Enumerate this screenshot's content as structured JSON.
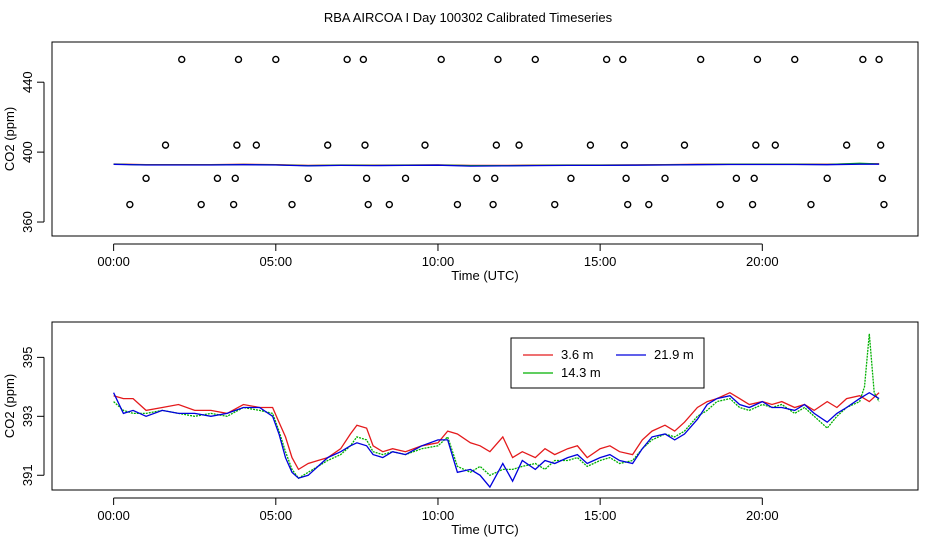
{
  "title": "RBA AIRCOA I  Day 100302  Calibrated Timeseries",
  "chart_data": [
    {
      "type": "scatter",
      "xlabel": "Time (UTC)",
      "ylabel": "CO2 (ppm)",
      "xlim": [
        -1.9,
        24.8
      ],
      "ylim": [
        352,
        463
      ],
      "xticks": [
        {
          "v": 0,
          "label": "00:00"
        },
        {
          "v": 5,
          "label": "05:00"
        },
        {
          "v": 10,
          "label": "10:00"
        },
        {
          "v": 15,
          "label": "15:00"
        },
        {
          "v": 20,
          "label": "20:00"
        }
      ],
      "yticks": [
        {
          "v": 360,
          "label": "360"
        },
        {
          "v": 400,
          "label": "400"
        },
        {
          "v": 440,
          "label": "440"
        }
      ],
      "marker_points": [
        [
          0.5,
          370
        ],
        [
          1.0,
          385
        ],
        [
          1.6,
          404
        ],
        [
          2.1,
          453
        ],
        [
          2.7,
          370
        ],
        [
          3.2,
          385
        ],
        [
          3.7,
          370
        ],
        [
          3.75,
          385
        ],
        [
          3.8,
          404
        ],
        [
          3.85,
          453
        ],
        [
          4.4,
          404
        ],
        [
          5.0,
          453
        ],
        [
          5.5,
          370
        ],
        [
          6.0,
          385
        ],
        [
          6.6,
          404
        ],
        [
          7.2,
          453
        ],
        [
          7.7,
          453
        ],
        [
          7.75,
          404
        ],
        [
          7.8,
          385
        ],
        [
          7.85,
          370
        ],
        [
          8.5,
          370
        ],
        [
          9.0,
          385
        ],
        [
          9.6,
          404
        ],
        [
          10.1,
          453
        ],
        [
          10.6,
          370
        ],
        [
          11.2,
          385
        ],
        [
          11.7,
          370
        ],
        [
          11.75,
          385
        ],
        [
          11.8,
          404
        ],
        [
          11.85,
          453
        ],
        [
          12.5,
          404
        ],
        [
          13.0,
          453
        ],
        [
          13.6,
          370
        ],
        [
          14.1,
          385
        ],
        [
          14.7,
          404
        ],
        [
          15.2,
          453
        ],
        [
          15.7,
          453
        ],
        [
          15.75,
          404
        ],
        [
          15.8,
          385
        ],
        [
          15.85,
          370
        ],
        [
          16.5,
          370
        ],
        [
          17.0,
          385
        ],
        [
          17.6,
          404
        ],
        [
          18.1,
          453
        ],
        [
          18.7,
          370
        ],
        [
          19.2,
          385
        ],
        [
          19.7,
          370
        ],
        [
          19.75,
          385
        ],
        [
          19.8,
          404
        ],
        [
          19.85,
          453
        ],
        [
          20.4,
          404
        ],
        [
          21.0,
          453
        ],
        [
          21.5,
          370
        ],
        [
          22.0,
          385
        ],
        [
          22.6,
          404
        ],
        [
          23.1,
          453
        ],
        [
          23.6,
          453
        ],
        [
          23.65,
          404
        ],
        [
          23.7,
          385
        ],
        [
          23.75,
          370
        ]
      ],
      "series": [
        {
          "name": "3.6 m",
          "color": "#e41a1c",
          "x": [
            0,
            1,
            2,
            3,
            4,
            5,
            6,
            7,
            8,
            9,
            10,
            11,
            12,
            13,
            14,
            15,
            16,
            17,
            18,
            19,
            20,
            21,
            22,
            23,
            23.6
          ],
          "y": [
            393.2,
            392.8,
            392.8,
            392.8,
            393.0,
            392.8,
            392.4,
            392.6,
            392.5,
            392.6,
            392.7,
            392.4,
            392.4,
            392.5,
            392.6,
            392.6,
            392.7,
            392.8,
            393.0,
            393.1,
            393.1,
            393.1,
            393.0,
            393.3,
            393.3
          ]
        },
        {
          "name": "14.3 m",
          "color": "#00b000",
          "x": [
            0,
            1,
            2,
            3,
            4,
            5,
            6,
            7,
            8,
            9,
            10,
            11,
            12,
            13,
            14,
            15,
            16,
            17,
            18,
            19,
            20,
            21,
            22,
            23,
            23.6
          ],
          "y": [
            393.1,
            392.7,
            392.7,
            392.7,
            392.9,
            392.7,
            392.3,
            392.5,
            392.4,
            392.5,
            392.6,
            392.2,
            392.2,
            392.4,
            392.5,
            392.5,
            392.6,
            392.7,
            392.9,
            393.0,
            393.0,
            393.0,
            392.9,
            393.6,
            393.2
          ]
        },
        {
          "name": "21.9 m",
          "color": "#0000dd",
          "x": [
            0,
            1,
            2,
            3,
            4,
            5,
            6,
            7,
            8,
            9,
            10,
            11,
            12,
            13,
            14,
            15,
            16,
            17,
            18,
            19,
            20,
            21,
            22,
            23,
            23.6
          ],
          "y": [
            393.0,
            392.6,
            392.6,
            392.6,
            392.8,
            392.6,
            392.1,
            392.4,
            392.3,
            392.4,
            392.5,
            392.0,
            392.1,
            392.3,
            392.4,
            392.4,
            392.5,
            392.6,
            392.8,
            392.9,
            392.9,
            392.9,
            392.8,
            393.1,
            393.1
          ]
        }
      ]
    },
    {
      "type": "line",
      "xlabel": "Time (UTC)",
      "ylabel": "CO2 (ppm)",
      "xlim": [
        -1.9,
        24.8
      ],
      "ylim": [
        390.5,
        396.2
      ],
      "xticks": [
        {
          "v": 0,
          "label": "00:00"
        },
        {
          "v": 5,
          "label": "05:00"
        },
        {
          "v": 10,
          "label": "10:00"
        },
        {
          "v": 15,
          "label": "15:00"
        },
        {
          "v": 20,
          "label": "20:00"
        }
      ],
      "yticks": [
        {
          "v": 391,
          "label": "391"
        },
        {
          "v": 393,
          "label": "393"
        },
        {
          "v": 395,
          "label": "395"
        }
      ],
      "legend": {
        "position": "top-center"
      },
      "series": [
        {
          "name": "3.6 m",
          "color": "#e41a1c",
          "x": [
            0,
            0.3,
            0.6,
            1.0,
            1.5,
            2.0,
            2.5,
            3.0,
            3.5,
            4.0,
            4.5,
            4.9,
            5.1,
            5.3,
            5.5,
            5.7,
            6.0,
            6.3,
            6.6,
            7.0,
            7.3,
            7.5,
            7.8,
            8.0,
            8.3,
            8.6,
            9.0,
            9.5,
            10.0,
            10.3,
            10.6,
            11.0,
            11.3,
            11.6,
            12.0,
            12.3,
            12.6,
            13.0,
            13.3,
            13.6,
            14.0,
            14.3,
            14.6,
            15.0,
            15.3,
            15.6,
            16.0,
            16.3,
            16.6,
            17.0,
            17.3,
            17.6,
            18.0,
            18.3,
            18.6,
            19.0,
            19.3,
            19.6,
            20.0,
            20.3,
            20.6,
            21.0,
            21.3,
            21.6,
            22.0,
            22.3,
            22.6,
            23.0,
            23.3,
            23.6
          ],
          "y": [
            393.7,
            393.6,
            393.6,
            393.2,
            393.3,
            393.4,
            393.2,
            393.2,
            393.1,
            393.4,
            393.3,
            393.3,
            392.8,
            392.3,
            391.6,
            391.2,
            391.4,
            391.5,
            391.6,
            391.9,
            392.4,
            392.7,
            392.6,
            392.0,
            391.8,
            391.9,
            391.8,
            392.0,
            392.1,
            392.5,
            392.4,
            392.1,
            392.0,
            391.8,
            392.3,
            391.6,
            391.8,
            391.6,
            391.9,
            391.7,
            391.9,
            392.0,
            391.6,
            391.9,
            392.0,
            391.8,
            391.7,
            392.2,
            392.5,
            392.7,
            392.5,
            392.8,
            393.3,
            393.5,
            393.6,
            393.8,
            393.6,
            393.4,
            393.5,
            393.4,
            393.5,
            393.3,
            393.4,
            393.2,
            393.5,
            393.3,
            393.6,
            393.7,
            393.5,
            393.8
          ]
        },
        {
          "name": "14.3 m",
          "color": "#00b000",
          "x": [
            0,
            0.3,
            0.6,
            1.0,
            1.5,
            2.0,
            2.5,
            3.0,
            3.5,
            4.0,
            4.5,
            4.9,
            5.1,
            5.3,
            5.5,
            5.7,
            6.0,
            6.3,
            6.6,
            7.0,
            7.3,
            7.5,
            7.8,
            8.0,
            8.3,
            8.6,
            9.0,
            9.5,
            10.0,
            10.3,
            10.6,
            11.0,
            11.3,
            11.6,
            12.0,
            12.3,
            12.6,
            13.0,
            13.3,
            13.6,
            14.0,
            14.3,
            14.6,
            15.0,
            15.3,
            15.6,
            16.0,
            16.3,
            16.6,
            17.0,
            17.3,
            17.6,
            18.0,
            18.3,
            18.6,
            19.0,
            19.3,
            19.6,
            20.0,
            20.3,
            20.6,
            21.0,
            21.3,
            21.6,
            22.0,
            22.3,
            22.6,
            23.0,
            23.15,
            23.3,
            23.45,
            23.6
          ],
          "y": [
            393.5,
            393.2,
            393.1,
            393.1,
            393.2,
            393.1,
            393.0,
            393.1,
            393.0,
            393.3,
            393.2,
            393.1,
            392.5,
            391.8,
            391.2,
            390.9,
            391.1,
            391.3,
            391.5,
            391.7,
            392.0,
            392.3,
            392.2,
            391.8,
            391.7,
            391.8,
            391.7,
            391.9,
            392.0,
            392.3,
            391.3,
            391.1,
            391.3,
            391.0,
            391.2,
            391.2,
            391.3,
            391.4,
            391.2,
            391.5,
            391.5,
            391.6,
            391.3,
            391.5,
            391.6,
            391.4,
            391.5,
            391.9,
            392.2,
            392.4,
            392.3,
            392.5,
            393.0,
            393.2,
            393.5,
            393.6,
            393.3,
            393.2,
            393.4,
            393.3,
            393.4,
            393.1,
            393.3,
            393.0,
            392.6,
            393.0,
            393.3,
            393.5,
            394.0,
            395.8,
            393.8,
            393.5
          ]
        },
        {
          "name": "21.9 m",
          "color": "#0000dd",
          "x": [
            0,
            0.3,
            0.6,
            1.0,
            1.5,
            2.0,
            2.5,
            3.0,
            3.5,
            4.0,
            4.5,
            4.9,
            5.1,
            5.3,
            5.5,
            5.7,
            6.0,
            6.3,
            6.6,
            7.0,
            7.3,
            7.5,
            7.8,
            8.0,
            8.3,
            8.6,
            9.0,
            9.5,
            10.0,
            10.3,
            10.6,
            11.0,
            11.3,
            11.6,
            12.0,
            12.3,
            12.6,
            13.0,
            13.3,
            13.6,
            14.0,
            14.3,
            14.6,
            15.0,
            15.3,
            15.6,
            16.0,
            16.3,
            16.6,
            17.0,
            17.3,
            17.6,
            18.0,
            18.3,
            18.6,
            19.0,
            19.3,
            19.6,
            20.0,
            20.3,
            20.6,
            21.0,
            21.3,
            21.6,
            22.0,
            22.3,
            22.6,
            23.0,
            23.3,
            23.6
          ],
          "y": [
            393.8,
            393.1,
            393.2,
            393.0,
            393.2,
            393.1,
            393.1,
            393.0,
            393.1,
            393.3,
            393.3,
            393.0,
            392.4,
            391.6,
            391.1,
            390.9,
            391.0,
            391.3,
            391.6,
            391.8,
            392.0,
            392.1,
            392.0,
            391.7,
            391.6,
            391.8,
            391.7,
            392.0,
            392.2,
            392.2,
            391.1,
            391.2,
            391.0,
            390.6,
            391.4,
            390.8,
            391.5,
            391.2,
            391.5,
            391.4,
            391.6,
            391.7,
            391.4,
            391.6,
            391.7,
            391.5,
            391.4,
            391.9,
            392.3,
            392.4,
            392.2,
            392.4,
            392.9,
            393.4,
            393.6,
            393.7,
            393.4,
            393.3,
            393.5,
            393.3,
            393.3,
            393.2,
            393.4,
            393.1,
            392.8,
            393.1,
            393.3,
            393.6,
            393.8,
            393.6
          ]
        }
      ]
    }
  ]
}
